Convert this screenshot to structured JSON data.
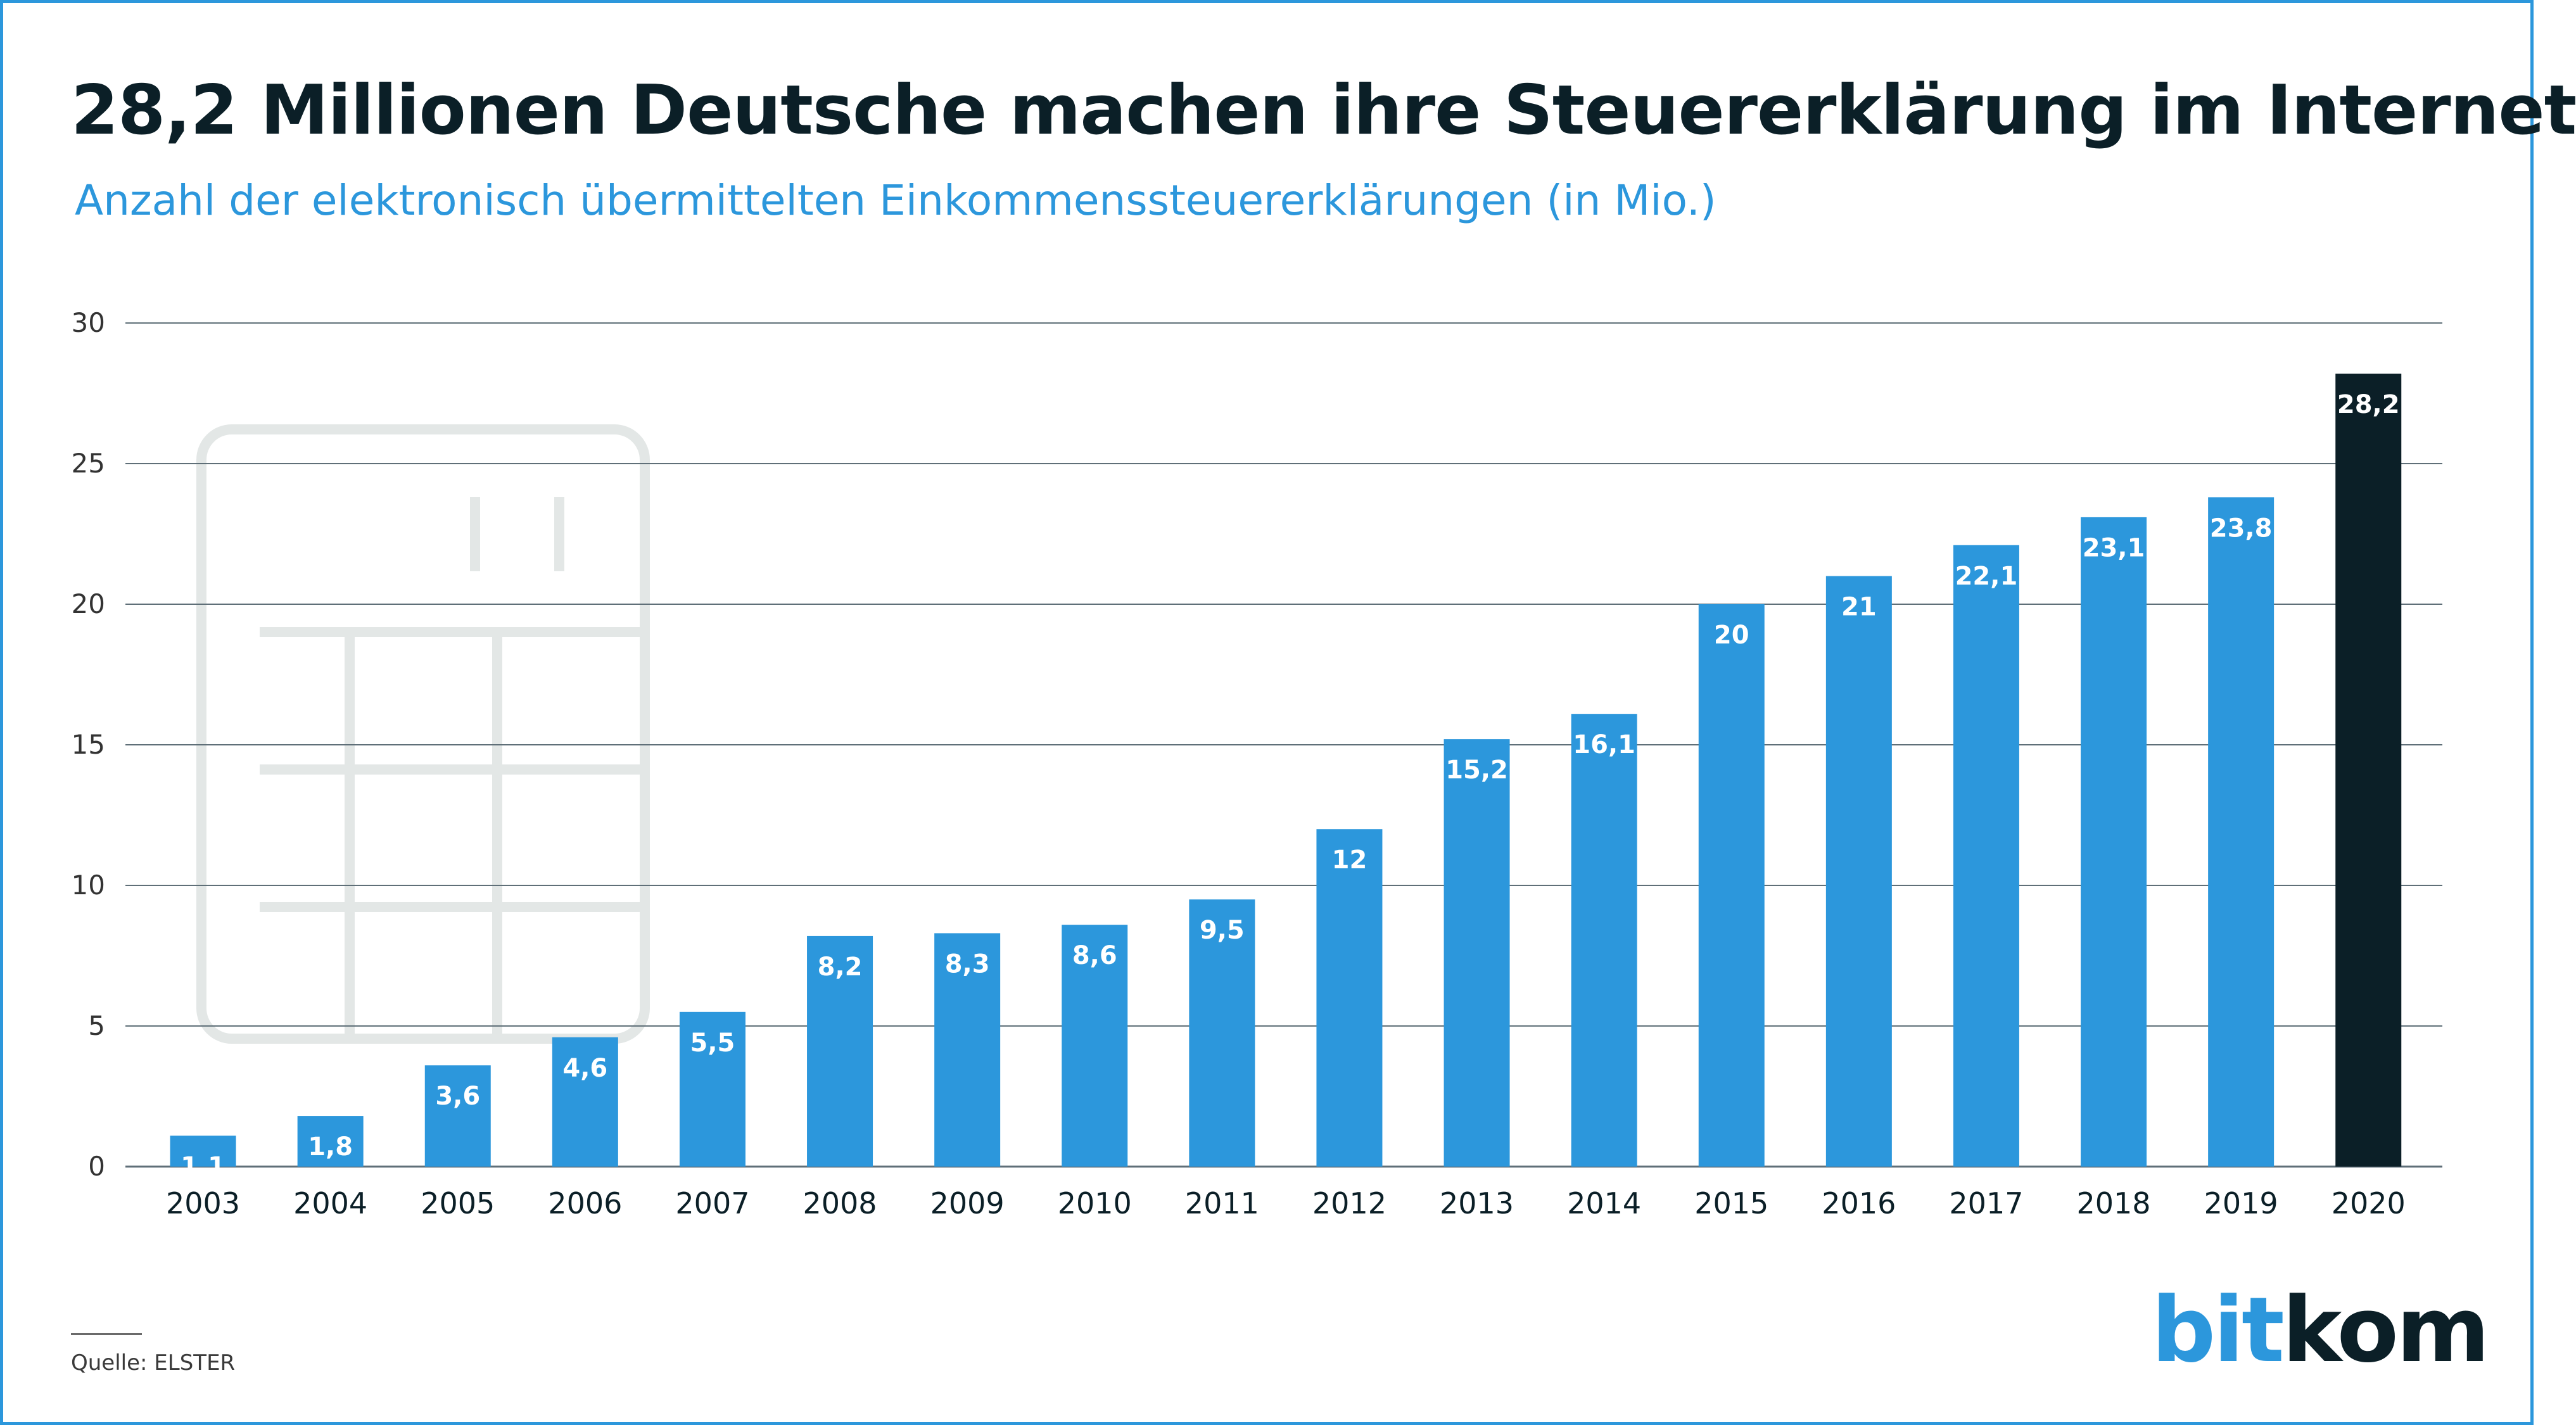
{
  "header": {
    "title": "28,2 Millionen Deutsche machen ihre Steuererklärung im Internet",
    "subtitle": "Anzahl der elektronisch übermittelten Einkommenssteuererklärungen (in Mio.)"
  },
  "footer": {
    "source": "Quelle: ELSTER",
    "logo_part1": "bit",
    "logo_part2": "kom"
  },
  "colors": {
    "bar": "#2c97dc",
    "highlight_bar": "#0b1f27",
    "grid": "#5f6f78",
    "text": "#0b1f27",
    "accent": "#2c97dc",
    "watermark": "#e3e7e6"
  },
  "chart_data": {
    "type": "bar",
    "title": "28,2 Millionen Deutsche machen ihre Steuererklärung im Internet",
    "subtitle": "Anzahl der elektronisch übermittelten Einkommenssteuererklärungen (in Mio.)",
    "xlabel": "",
    "ylabel": "",
    "categories": [
      "2003",
      "2004",
      "2005",
      "2006",
      "2007",
      "2008",
      "2009",
      "2010",
      "2011",
      "2012",
      "2013",
      "2014",
      "2015",
      "2016",
      "2017",
      "2018",
      "2019",
      "2020"
    ],
    "values": [
      1.1,
      1.8,
      3.6,
      4.6,
      5.5,
      8.2,
      8.3,
      8.6,
      9.5,
      12,
      15.2,
      16.1,
      20,
      21,
      22.1,
      23.1,
      23.8,
      28.2
    ],
    "value_labels": [
      "1,1",
      "1,8",
      "3,6",
      "4,6",
      "5,5",
      "8,2",
      "8,3",
      "8,6",
      "9,5",
      "12",
      "15,2",
      "16,1",
      "20",
      "21",
      "22,1",
      "23,1",
      "23,8",
      "28,2"
    ],
    "highlight": "2020",
    "ylim": [
      0,
      30
    ],
    "yticks": [
      0,
      5,
      10,
      15,
      20,
      25,
      30
    ],
    "grid": true,
    "legend": "none"
  }
}
